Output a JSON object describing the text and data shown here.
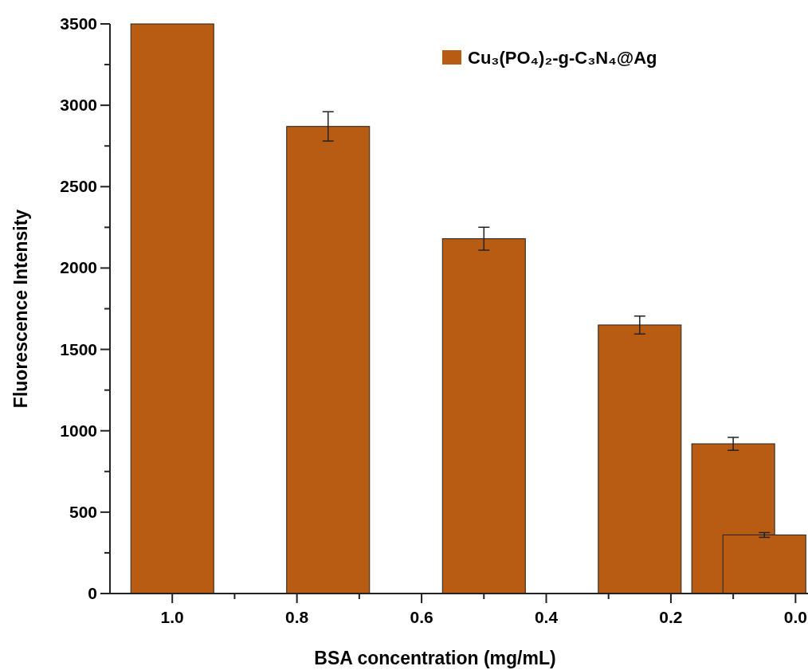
{
  "chart_data": {
    "type": "bar",
    "xlabel": "BSA concentration (mg/mL)",
    "ylabel": "Fluorescence Intensity",
    "x": [
      1.0,
      0.75,
      0.5,
      0.25,
      0.1,
      0.05
    ],
    "series": [
      {
        "name": "Cu₃(PO₄)₂-g-C₃N₄@Ag",
        "color": "#b85c14",
        "values": [
          3500,
          2870,
          2180,
          1650,
          920,
          360
        ],
        "errors": [
          null,
          90,
          70,
          55,
          40,
          15
        ]
      }
    ],
    "xlim": [
      1.1,
      -0.02
    ],
    "xticks": [
      {
        "value": 1,
        "label": "1.0"
      },
      {
        "value": 0.9,
        "label": null
      },
      {
        "value": 0.8,
        "label": "0.8"
      },
      {
        "value": 0.7,
        "label": null
      },
      {
        "value": 0.6,
        "label": "0.6"
      },
      {
        "value": 0.5,
        "label": null
      },
      {
        "value": 0.4,
        "label": "0.4"
      },
      {
        "value": 0.3,
        "label": null
      },
      {
        "value": 0.2,
        "label": "0.2"
      },
      {
        "value": 0.1,
        "label": null
      },
      {
        "value": 0,
        "label": "0.0"
      }
    ],
    "ylim": [
      0,
      3500
    ],
    "yticks": [
      0,
      {
        "value": 250,
        "label": null
      },
      500,
      {
        "value": 750,
        "label": null
      },
      1000,
      {
        "value": 1250,
        "label": null
      },
      1500,
      {
        "value": 1750,
        "label": null
      },
      2000,
      {
        "value": 2250,
        "label": null
      },
      2500,
      {
        "value": 2750,
        "label": null
      },
      3000,
      {
        "value": 3250,
        "label": null
      },
      3500
    ],
    "legend": "top right",
    "grid": false
  }
}
